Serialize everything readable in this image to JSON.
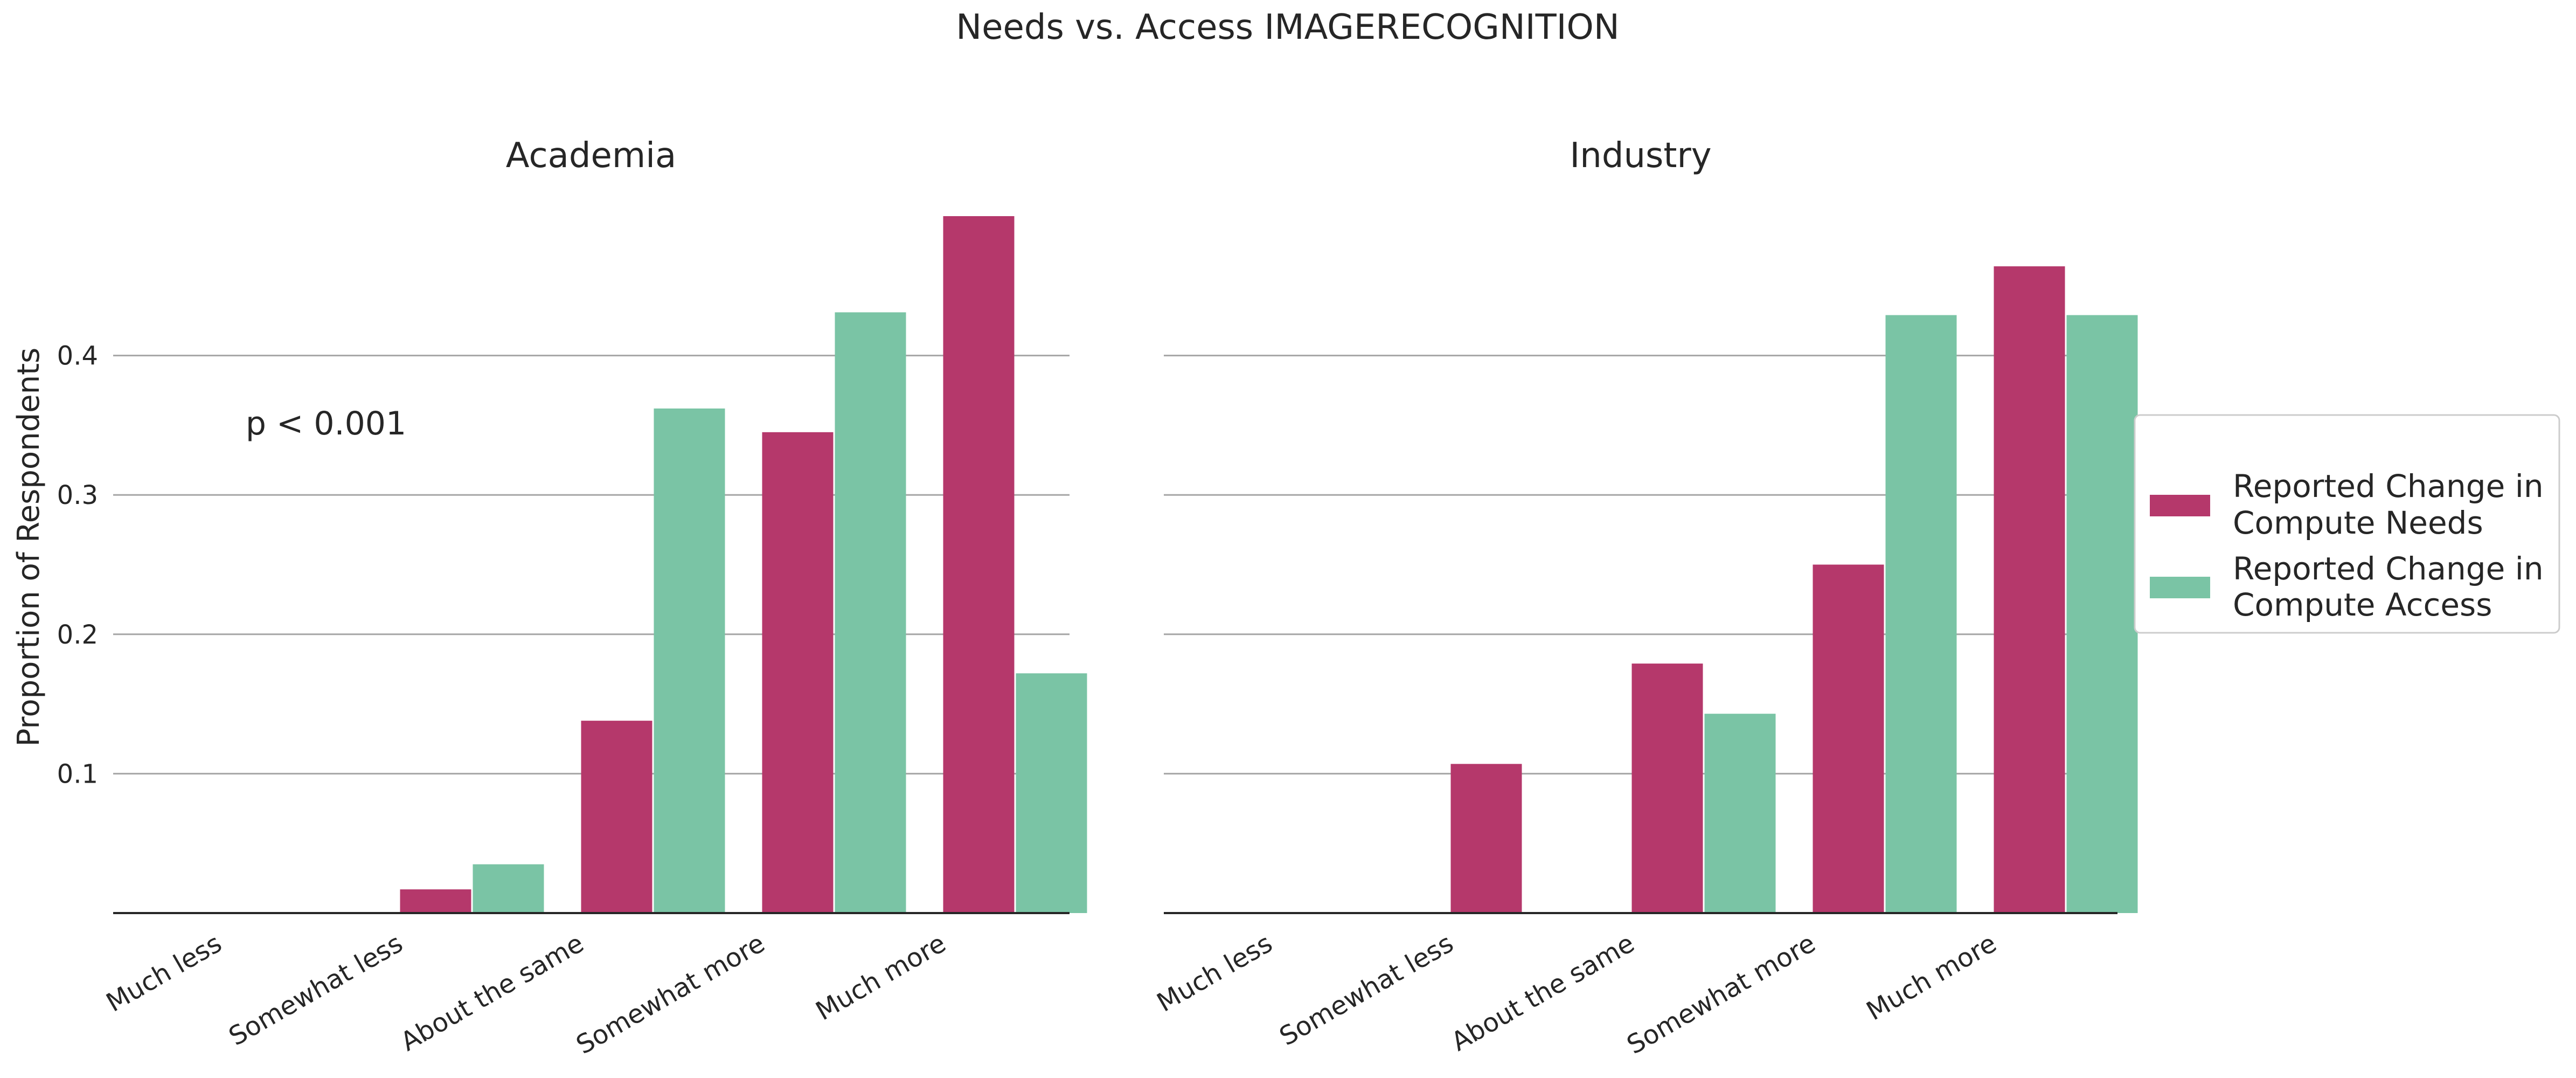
{
  "chart_data": {
    "type": "bar",
    "title": "Needs vs. Access IMAGERECOGNITION",
    "ylabel": "Proportion of Respondents",
    "ylim": [
      0,
      0.5
    ],
    "yticks": [
      "0.1",
      "0.2",
      "0.3",
      "0.4"
    ],
    "grid": true,
    "categories": [
      "Much less",
      "Somewhat less",
      "About the same",
      "Somewhat more",
      "Much more"
    ],
    "legend": {
      "placement": "right",
      "entries": [
        {
          "line1": "Reported Change in",
          "line2": "Compute Needs"
        },
        {
          "line1": "Reported Change in",
          "line2": "Compute Access"
        }
      ]
    },
    "colors": {
      "needs": "#b5386b",
      "access": "#7ac4a5"
    },
    "panels": [
      {
        "title": "Academia",
        "annotation": "p < 0.001",
        "series": [
          {
            "values": [
              0.0,
              0.017,
              0.138,
              0.345,
              0.5
            ]
          },
          {
            "values": [
              0.0,
              0.035,
              0.362,
              0.431,
              0.172
            ]
          }
        ]
      },
      {
        "title": "Industry",
        "annotation": "",
        "series": [
          {
            "values": [
              0.0,
              0.107,
              0.179,
              0.25,
              0.464
            ]
          },
          {
            "values": [
              0.0,
              0.0,
              0.143,
              0.429,
              0.429
            ]
          }
        ]
      }
    ]
  }
}
